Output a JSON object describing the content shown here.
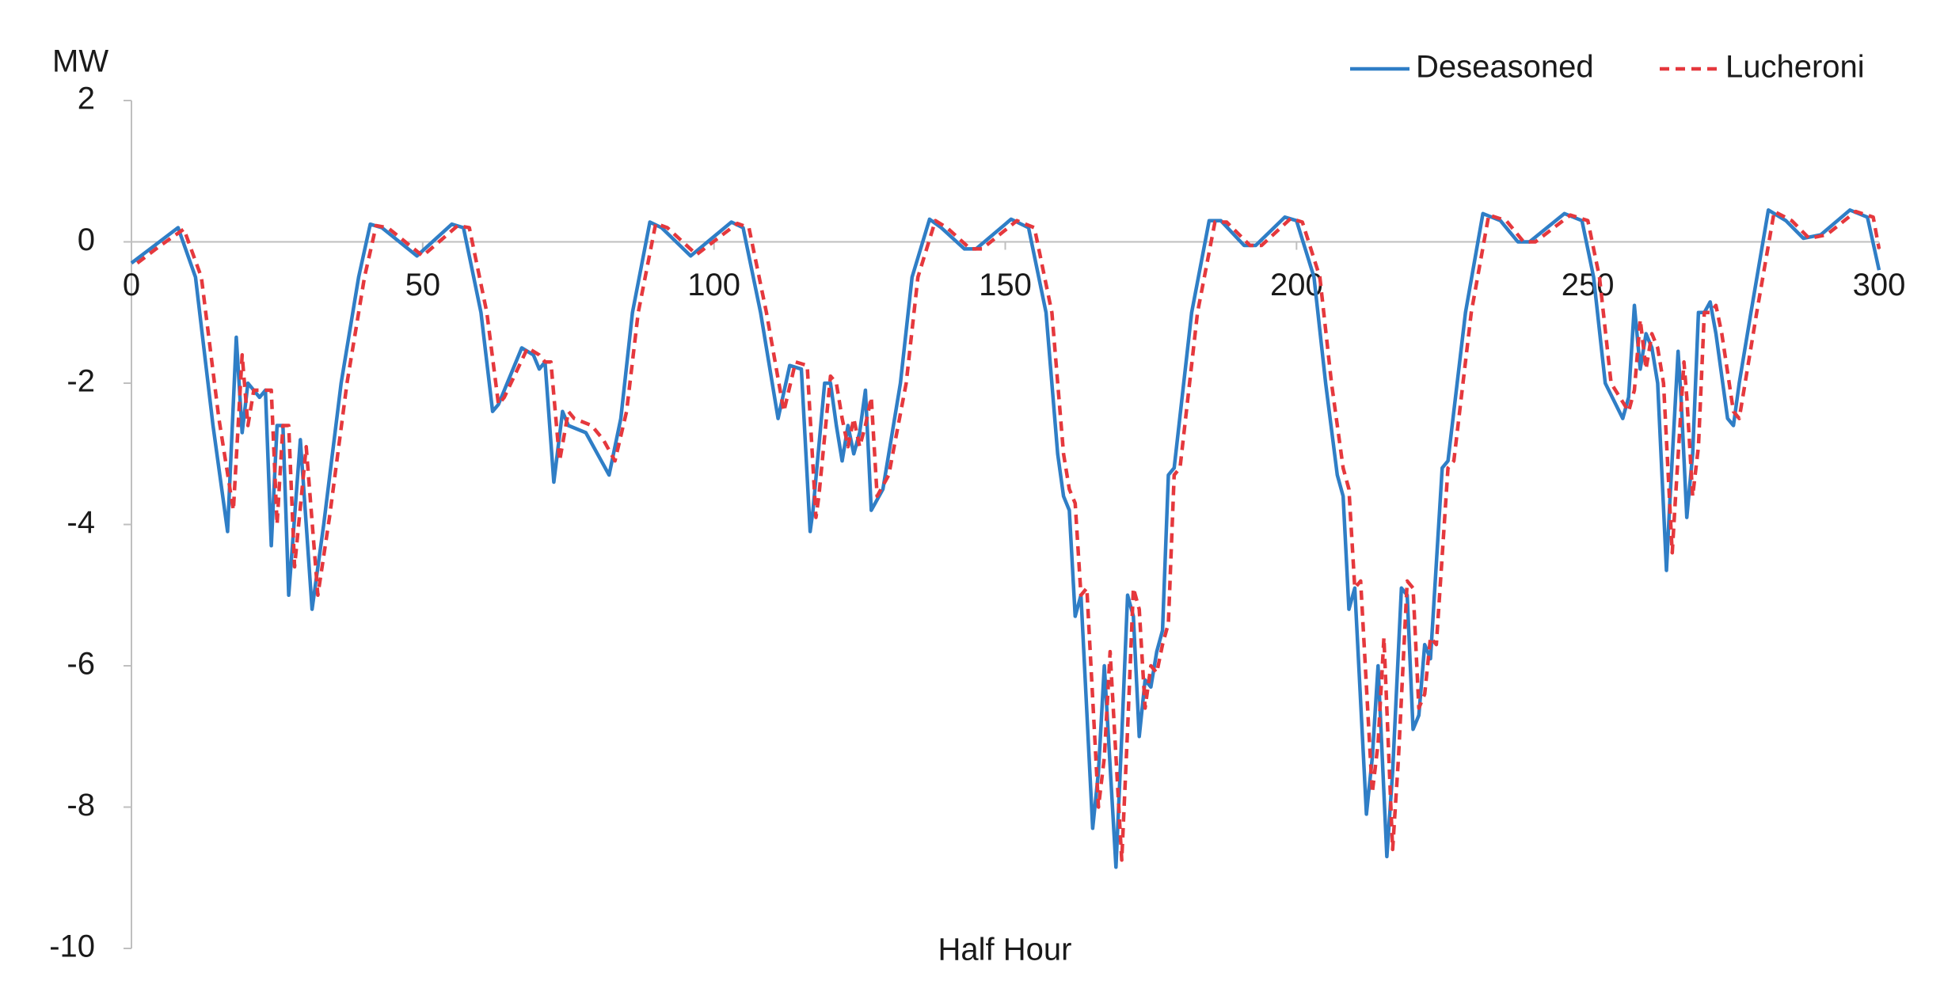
{
  "chart_data": {
    "type": "line",
    "y_label": "MW",
    "x_label": "Half Hour",
    "xlim": [
      0,
      300
    ],
    "xticks": [
      0,
      50,
      100,
      150,
      200,
      250,
      300
    ],
    "ylim": [
      -10,
      2
    ],
    "yticks": [
      -10,
      -8,
      -6,
      -4,
      -2,
      0,
      2
    ],
    "grid": false,
    "legend": "top-right",
    "series": [
      {
        "name": "Deseasoned",
        "color": "#2f7ec6",
        "dash": false,
        "x": [
          0,
          4,
          8,
          11,
          14,
          16.5,
          18,
          19,
          20,
          22,
          23,
          24,
          25,
          26,
          27,
          29,
          31,
          33,
          36,
          39,
          41,
          43,
          49,
          55,
          57,
          60,
          62,
          63,
          67,
          69,
          70,
          71,
          72.5,
          74,
          75,
          78,
          80,
          82,
          84,
          86,
          89,
          91,
          96,
          103,
          105,
          108,
          111,
          113,
          115,
          116.5,
          117,
          119,
          120,
          121,
          122,
          123,
          124,
          125,
          126,
          127,
          129,
          132,
          134,
          137,
          139,
          143,
          145,
          151,
          154,
          157,
          159,
          160,
          161,
          162,
          163,
          165,
          166,
          167,
          169,
          170,
          171,
          172,
          173,
          174,
          175,
          176,
          177,
          178,
          179,
          182,
          185,
          187,
          191,
          193,
          198,
          200,
          203,
          205,
          207,
          208,
          209,
          210,
          212,
          213,
          214,
          215.5,
          216.5,
          218,
          219,
          220,
          221,
          222,
          223,
          225,
          226,
          229,
          232,
          235,
          238,
          240,
          246,
          249,
          251,
          253,
          256,
          257,
          258,
          259,
          260,
          261,
          262,
          263.5,
          264,
          265.5,
          266,
          267,
          268,
          269,
          270,
          271,
          272,
          274,
          275,
          276,
          278,
          281,
          284,
          287,
          290,
          295,
          298,
          300
        ],
        "values": [
          -0.3,
          -0.05,
          0.2,
          -0.5,
          -2.6,
          -4.1,
          -1.35,
          -2.7,
          -2.0,
          -2.2,
          -2.1,
          -4.3,
          -2.6,
          -2.6,
          -5.0,
          -2.8,
          -5.2,
          -4.0,
          -2.0,
          -0.5,
          0.25,
          0.2,
          -0.2,
          0.25,
          0.2,
          -1.0,
          -2.4,
          -2.3,
          -1.5,
          -1.6,
          -1.8,
          -1.7,
          -3.4,
          -2.4,
          -2.6,
          -2.7,
          -3.0,
          -3.3,
          -2.5,
          -1.0,
          0.28,
          0.2,
          -0.2,
          0.28,
          0.2,
          -1.0,
          -2.5,
          -1.75,
          -1.8,
          -4.1,
          -3.8,
          -2.0,
          -2.0,
          -2.6,
          -3.1,
          -2.6,
          -3.0,
          -2.7,
          -2.1,
          -3.8,
          -3.5,
          -2.0,
          -0.5,
          0.32,
          0.2,
          -0.1,
          -0.1,
          0.32,
          0.2,
          -1.0,
          -3.0,
          -3.6,
          -3.8,
          -5.3,
          -5.0,
          -8.3,
          -7.5,
          -6.0,
          -8.85,
          -7.0,
          -5.0,
          -5.3,
          -7.0,
          -6.2,
          -6.3,
          -5.8,
          -5.5,
          -3.3,
          -3.2,
          -1.0,
          0.3,
          0.3,
          -0.05,
          -0.05,
          0.35,
          0.3,
          -0.5,
          -2.0,
          -3.3,
          -3.6,
          -5.2,
          -4.9,
          -8.1,
          -7.3,
          -6.0,
          -8.7,
          -7.5,
          -4.9,
          -5.0,
          -6.9,
          -6.7,
          -5.7,
          -5.9,
          -3.2,
          -3.1,
          -1.0,
          0.4,
          0.3,
          0.0,
          0.0,
          0.4,
          0.3,
          -0.5,
          -2.0,
          -2.5,
          -2.2,
          -0.9,
          -1.8,
          -1.3,
          -1.5,
          -2.0,
          -4.65,
          -3.8,
          -1.55,
          -2.2,
          -3.9,
          -3.0,
          -1.0,
          -1.0,
          -0.85,
          -1.3,
          -2.5,
          -2.6,
          -2.0,
          -1.0,
          0.45,
          0.3,
          0.05,
          0.1,
          0.45,
          0.35,
          -0.4
        ]
      },
      {
        "name": "Lucheroni",
        "color": "#e5383d",
        "dash": true,
        "x": [
          1,
          5,
          9,
          12,
          15,
          17.5,
          19,
          20,
          21,
          23,
          24,
          25,
          26,
          27,
          28,
          30,
          32,
          34,
          37,
          40,
          42,
          44,
          50,
          56,
          58,
          61,
          63,
          64,
          68,
          70,
          71,
          72,
          73.5,
          75,
          76,
          79,
          81,
          83,
          85,
          87,
          90,
          92,
          97,
          104,
          106,
          109,
          112,
          114,
          116,
          117.5,
          118,
          120,
          121,
          122,
          123,
          124,
          125,
          126,
          127,
          128,
          130,
          133,
          135,
          138,
          140,
          144,
          146,
          152,
          155,
          158,
          160,
          161,
          162,
          163,
          164,
          166,
          167,
          168,
          170,
          171,
          172,
          173,
          174,
          175,
          176,
          177,
          178,
          179,
          180,
          183,
          186,
          188,
          192,
          194,
          199,
          201,
          204,
          206,
          208,
          209,
          210,
          211,
          213,
          214,
          215,
          216.5,
          217.5,
          219,
          220,
          221,
          222,
          223,
          224,
          226,
          227,
          230,
          233,
          236,
          239,
          241,
          247,
          250,
          252,
          254,
          257,
          258,
          259,
          260,
          261,
          262,
          263,
          264.5,
          265,
          266.5,
          267,
          268,
          269,
          270,
          271,
          272,
          273,
          275,
          276,
          277,
          279,
          282,
          285,
          288,
          291,
          296,
          299,
          300
        ],
        "values": [
          -0.3,
          -0.05,
          0.18,
          -0.5,
          -2.5,
          -3.8,
          -1.6,
          -2.6,
          -2.1,
          -2.1,
          -2.1,
          -4.0,
          -2.6,
          -2.6,
          -4.6,
          -2.9,
          -5.0,
          -3.9,
          -2.0,
          -0.5,
          0.23,
          0.2,
          -0.2,
          0.23,
          0.2,
          -1.0,
          -2.3,
          -2.2,
          -1.5,
          -1.6,
          -1.7,
          -1.7,
          -3.1,
          -2.4,
          -2.5,
          -2.6,
          -2.8,
          -3.1,
          -2.4,
          -1.0,
          0.26,
          0.2,
          -0.18,
          0.26,
          0.2,
          -1.0,
          -2.4,
          -1.7,
          -1.75,
          -3.9,
          -3.6,
          -1.9,
          -2.0,
          -2.5,
          -2.9,
          -2.5,
          -2.9,
          -2.6,
          -2.2,
          -3.6,
          -3.3,
          -2.0,
          -0.5,
          0.3,
          0.2,
          -0.1,
          -0.1,
          0.3,
          0.2,
          -1.0,
          -3.0,
          -3.5,
          -3.7,
          -5.0,
          -4.9,
          -8.0,
          -7.3,
          -5.8,
          -8.75,
          -6.9,
          -4.9,
          -5.2,
          -6.6,
          -6.0,
          -6.1,
          -5.7,
          -5.4,
          -3.3,
          -3.2,
          -1.0,
          0.28,
          0.28,
          -0.05,
          -0.05,
          0.33,
          0.28,
          -0.5,
          -2.0,
          -3.2,
          -3.5,
          -4.9,
          -4.8,
          -7.8,
          -7.1,
          -5.6,
          -8.6,
          -7.3,
          -4.8,
          -4.9,
          -6.6,
          -6.4,
          -5.6,
          -5.7,
          -3.2,
          -3.1,
          -1.0,
          0.38,
          0.3,
          0.0,
          0.0,
          0.38,
          0.3,
          -0.5,
          -2.0,
          -2.4,
          -2.1,
          -1.1,
          -1.8,
          -1.3,
          -1.5,
          -2.0,
          -4.4,
          -3.7,
          -1.7,
          -2.2,
          -3.6,
          -2.9,
          -1.0,
          -1.0,
          -0.9,
          -1.3,
          -2.4,
          -2.5,
          -2.0,
          -1.0,
          0.43,
          0.3,
          0.05,
          0.1,
          0.43,
          0.35,
          -0.1
        ]
      }
    ]
  }
}
